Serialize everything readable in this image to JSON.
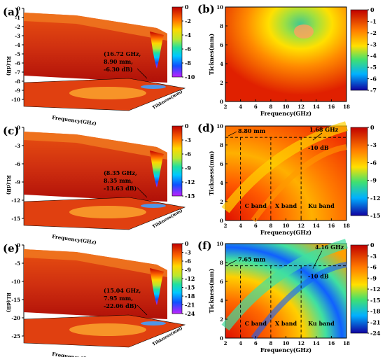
{
  "panels": [
    {
      "label": "(a)",
      "kind": "3d",
      "zticks": [
        "0",
        "-1",
        "-2",
        "-3",
        "-4",
        "-5",
        "-6",
        "-7",
        "-8",
        "-9",
        "-10"
      ],
      "zlabel": "RL(dB)",
      "xlabel": "Frequency(GHz)",
      "ylabel": "Tihkness(mm)",
      "annotation": [
        "(16.72 GHz,",
        "8.90 mm,",
        "-6.30 dB)"
      ],
      "colorbar": {
        "ticks": [
          "0",
          "-2",
          "-4",
          "-6",
          "-8",
          "-10"
        ],
        "min": -10,
        "max": 0
      }
    },
    {
      "label": "(b)",
      "kind": "2d",
      "xlabel": "Frequency(GHz)",
      "ylabel": "Ticknes(mm)",
      "xticks": [
        "2",
        "4",
        "6",
        "8",
        "10",
        "12",
        "14",
        "16",
        "18"
      ],
      "yticks": [
        "0",
        "2",
        "4",
        "6",
        "8",
        "10"
      ],
      "colorbar": {
        "ticks": [
          "0",
          "-1",
          "-2",
          "-3",
          "-4",
          "-5",
          "-6",
          "-7"
        ],
        "min": -7,
        "max": 0
      }
    },
    {
      "label": "(c)",
      "kind": "3d",
      "zticks": [
        "0",
        "-3",
        "-6",
        "-9",
        "-12",
        "-15"
      ],
      "zlabel": "RL(dB)",
      "xlabel": "Frequency(GHz)",
      "ylabel": "Tihkness(mm)",
      "annotation": [
        "(8.35 GHz,",
        "8.35 mm,",
        "-13.63 dB)"
      ],
      "colorbar": {
        "ticks": [
          "0",
          "-3",
          "-6",
          "-9",
          "-12",
          "-15"
        ],
        "min": -15,
        "max": 0
      }
    },
    {
      "label": "(d)",
      "kind": "2d",
      "xlabel": "Frequency(GHz)",
      "ylabel": "Tickness(mm)",
      "xticks": [
        "2",
        "4",
        "6",
        "8",
        "10",
        "12",
        "14",
        "16",
        "18"
      ],
      "yticks": [
        "0",
        "2",
        "4",
        "6",
        "8",
        "10"
      ],
      "thickness_label": "8.80 mm",
      "bandwidth_label": "1.68 GHz",
      "db_label": "-10 dB",
      "bands": [
        "C band",
        "X band",
        "Ku band"
      ],
      "colorbar": {
        "ticks": [
          "0",
          "-3",
          "-6",
          "-9",
          "-12",
          "-15"
        ],
        "min": -15,
        "max": 0
      }
    },
    {
      "label": "(e)",
      "kind": "3d",
      "zticks": [
        "0",
        "-5",
        "-10",
        "-15",
        "-20",
        "-25"
      ],
      "zlabel": "RL(dB)",
      "xlabel": "Frequency(GHz)",
      "ylabel": "Tihkness(mm)",
      "annotation": [
        "(15.04 GHz,",
        "7.95 mm,",
        "-22.06 dB)"
      ],
      "colorbar": {
        "ticks": [
          "0",
          "-3",
          "-6",
          "-9",
          "-12",
          "-15",
          "-18",
          "-21",
          "-24"
        ],
        "min": -24,
        "max": 0
      }
    },
    {
      "label": "(f)",
      "kind": "2d",
      "xlabel": "Frequency(GHz)",
      "ylabel": "Tickness(mm)",
      "xticks": [
        "2",
        "4",
        "6",
        "8",
        "10",
        "12",
        "14",
        "16",
        "18"
      ],
      "yticks": [
        "0",
        "2",
        "4",
        "6",
        "8",
        "10"
      ],
      "thickness_label": "7.65 mm",
      "bandwidth_label": "4.16 GHz",
      "db_label": "-10 dB",
      "bands": [
        "C band",
        "X band",
        "Ku band"
      ],
      "colorbar": {
        "ticks": [
          "0",
          "-3",
          "-6",
          "-9",
          "-12",
          "-15",
          "-18",
          "-21",
          "-24"
        ],
        "min": -24,
        "max": 0
      }
    }
  ],
  "chart_data": [
    {
      "type": "surface",
      "panel": "(a)",
      "z_range": [
        -10,
        0
      ],
      "peak": {
        "frequency_GHz": 16.72,
        "thickness_mm": 8.9,
        "RL_dB": -6.3
      }
    },
    {
      "type": "heatmap",
      "panel": "(b)",
      "x_range": [
        2,
        18
      ],
      "y_range": [
        0,
        10
      ],
      "value_range": [
        -7,
        0
      ]
    },
    {
      "type": "surface",
      "panel": "(c)",
      "z_range": [
        -15,
        0
      ],
      "peak": {
        "frequency_GHz": 8.35,
        "thickness_mm": 8.35,
        "RL_dB": -13.63
      }
    },
    {
      "type": "heatmap",
      "panel": "(d)",
      "x_range": [
        2,
        18
      ],
      "y_range": [
        0,
        10
      ],
      "value_range": [
        -15,
        0
      ],
      "marked_thickness_mm": 8.8,
      "bandwidth_GHz": 1.68,
      "band_boundaries_GHz": [
        4,
        8,
        12,
        18
      ]
    },
    {
      "type": "surface",
      "panel": "(e)",
      "z_range": [
        -25,
        0
      ],
      "peak": {
        "frequency_GHz": 15.04,
        "thickness_mm": 7.95,
        "RL_dB": -22.06
      }
    },
    {
      "type": "heatmap",
      "panel": "(f)",
      "x_range": [
        2,
        18
      ],
      "y_range": [
        0,
        10
      ],
      "value_range": [
        -24,
        0
      ],
      "marked_thickness_mm": 7.65,
      "bandwidth_GHz": 4.16,
      "band_boundaries_GHz": [
        4,
        8,
        12,
        18
      ]
    }
  ]
}
